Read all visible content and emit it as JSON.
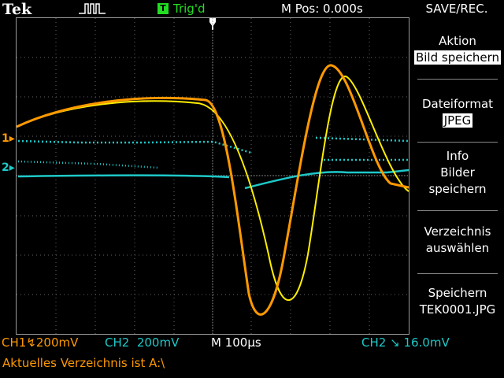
{
  "top": {
    "brand": "Tek",
    "trigger_badge": "T",
    "trigger_status": "Trig'd",
    "main_position": "M Pos: 0.000s",
    "menu_title": "SAVE/REC."
  },
  "menu": {
    "action_label": "Aktion",
    "action_value": "Bild speichern",
    "format_label": "Dateiformat",
    "format_value": "JPEG",
    "info_line1": "Info",
    "info_line2": "Bilder",
    "info_line3": "speichern",
    "dir_line1": "Verzeichnis",
    "dir_line2": "auswählen",
    "save_line1": "Speichern",
    "save_line2": "TEK0001.JPG"
  },
  "status": {
    "ch1": "CH1",
    "ch1_scale": "200mV",
    "ch2": "CH2",
    "ch2_scale": "200mV",
    "timebase": "M 100µs",
    "trigger_source": "CH2",
    "trigger_level": "16.0mV",
    "message": "Aktuelles Verzeichnis ist A:\\"
  },
  "markers": {
    "ch1": "1",
    "ch2": "2"
  },
  "colors": {
    "ch1": "#ff9900",
    "ch2": "#1ec8c8",
    "ch1_ref": "#ffee00",
    "trigger": "#22dd22"
  }
}
